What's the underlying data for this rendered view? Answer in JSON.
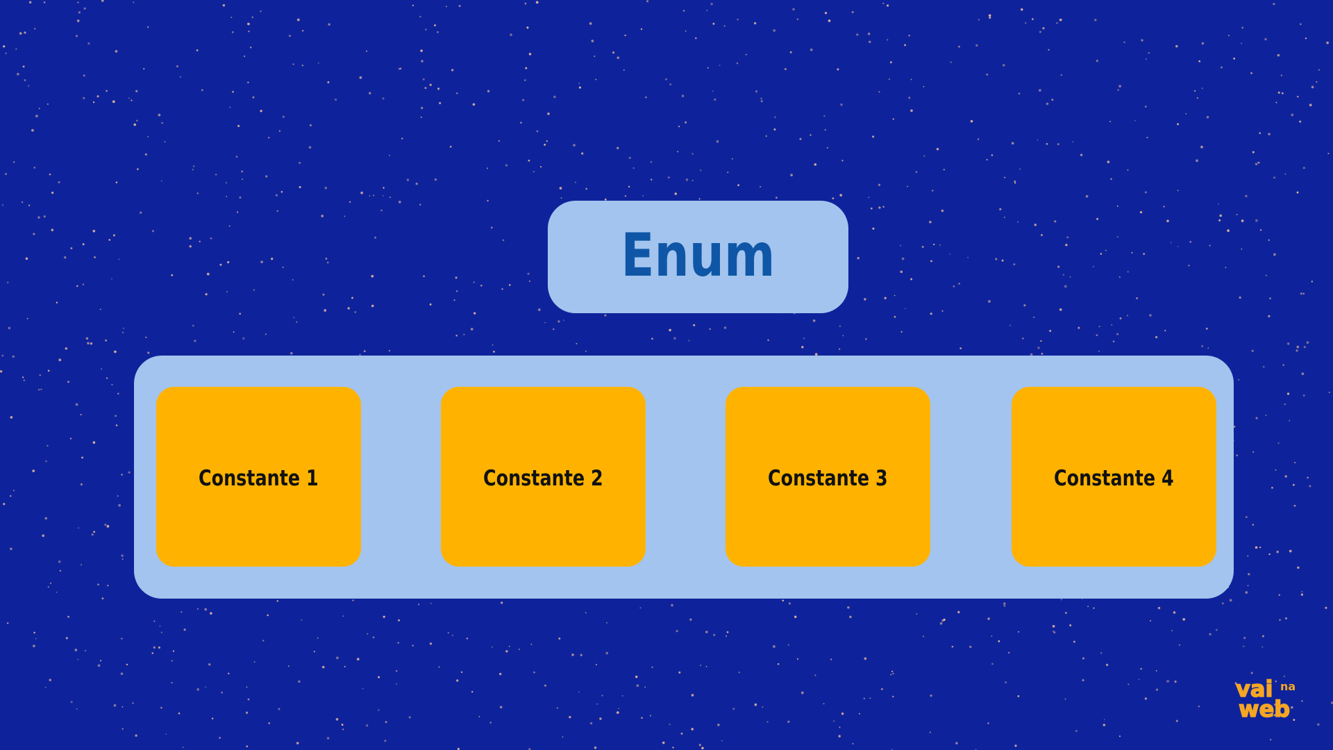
{
  "diagram": {
    "title": "Enum",
    "constants": [
      "Constante 1",
      "Constante 2",
      "Constante 3",
      "Constante 4"
    ]
  },
  "logo": {
    "line1": "vai",
    "small": "na",
    "line2": "web"
  },
  "colors": {
    "background": "#0e239b",
    "panel": "#a3c4ee",
    "title_text": "#0f57a6",
    "constant_box": "#ffb300",
    "constant_text": "#111111",
    "logo": "#f5a623",
    "speckle": "#e7b7a0"
  }
}
